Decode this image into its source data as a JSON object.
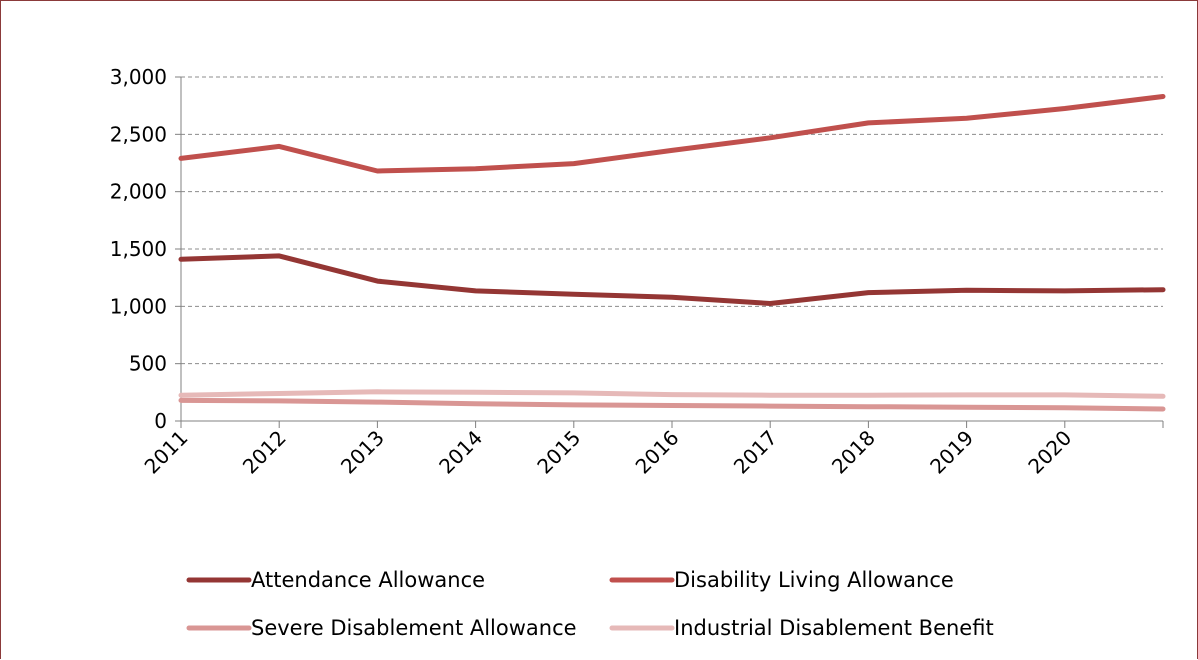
{
  "chart_data": {
    "type": "line",
    "title": "",
    "xlabel": "",
    "ylabel": "",
    "x": [
      "2011",
      "2012",
      "2013",
      "2014",
      "2015",
      "2016",
      "2017",
      "2018",
      "2019",
      "2020",
      "2021"
    ],
    "x_tick_labels": [
      "2011",
      "2012",
      "2013",
      "2014",
      "2015",
      "2016",
      "2017",
      "2018",
      "2019",
      "2020"
    ],
    "ylim": [
      0,
      3000
    ],
    "y_ticks": [
      0,
      500,
      1000,
      1500,
      2000,
      2500,
      3000
    ],
    "y_tick_labels": [
      "0",
      "500",
      "1,000",
      "1,500",
      "2,000",
      "2,500",
      "3,000"
    ],
    "grid": "horizontal dashed",
    "legend_position": "bottom",
    "series": [
      {
        "name": "Attendance Allowance",
        "color": "#943634",
        "values": [
          1410,
          1440,
          1220,
          1135,
          1105,
          1080,
          1025,
          1120,
          1140,
          1135,
          1145
        ]
      },
      {
        "name": "Disability Living Allowance",
        "color": "#C0504D",
        "values": [
          2290,
          2395,
          2180,
          2200,
          2245,
          2360,
          2470,
          2600,
          2640,
          2725,
          2830
        ]
      },
      {
        "name": "Severe Disablement Allowance",
        "color": "#D99694",
        "values": [
          180,
          175,
          165,
          150,
          140,
          135,
          130,
          125,
          120,
          115,
          105
        ]
      },
      {
        "name": "Industrial Disablement Benefit",
        "color": "#E6B9B8",
        "values": [
          225,
          240,
          255,
          250,
          245,
          230,
          225,
          225,
          228,
          228,
          215
        ]
      }
    ]
  }
}
